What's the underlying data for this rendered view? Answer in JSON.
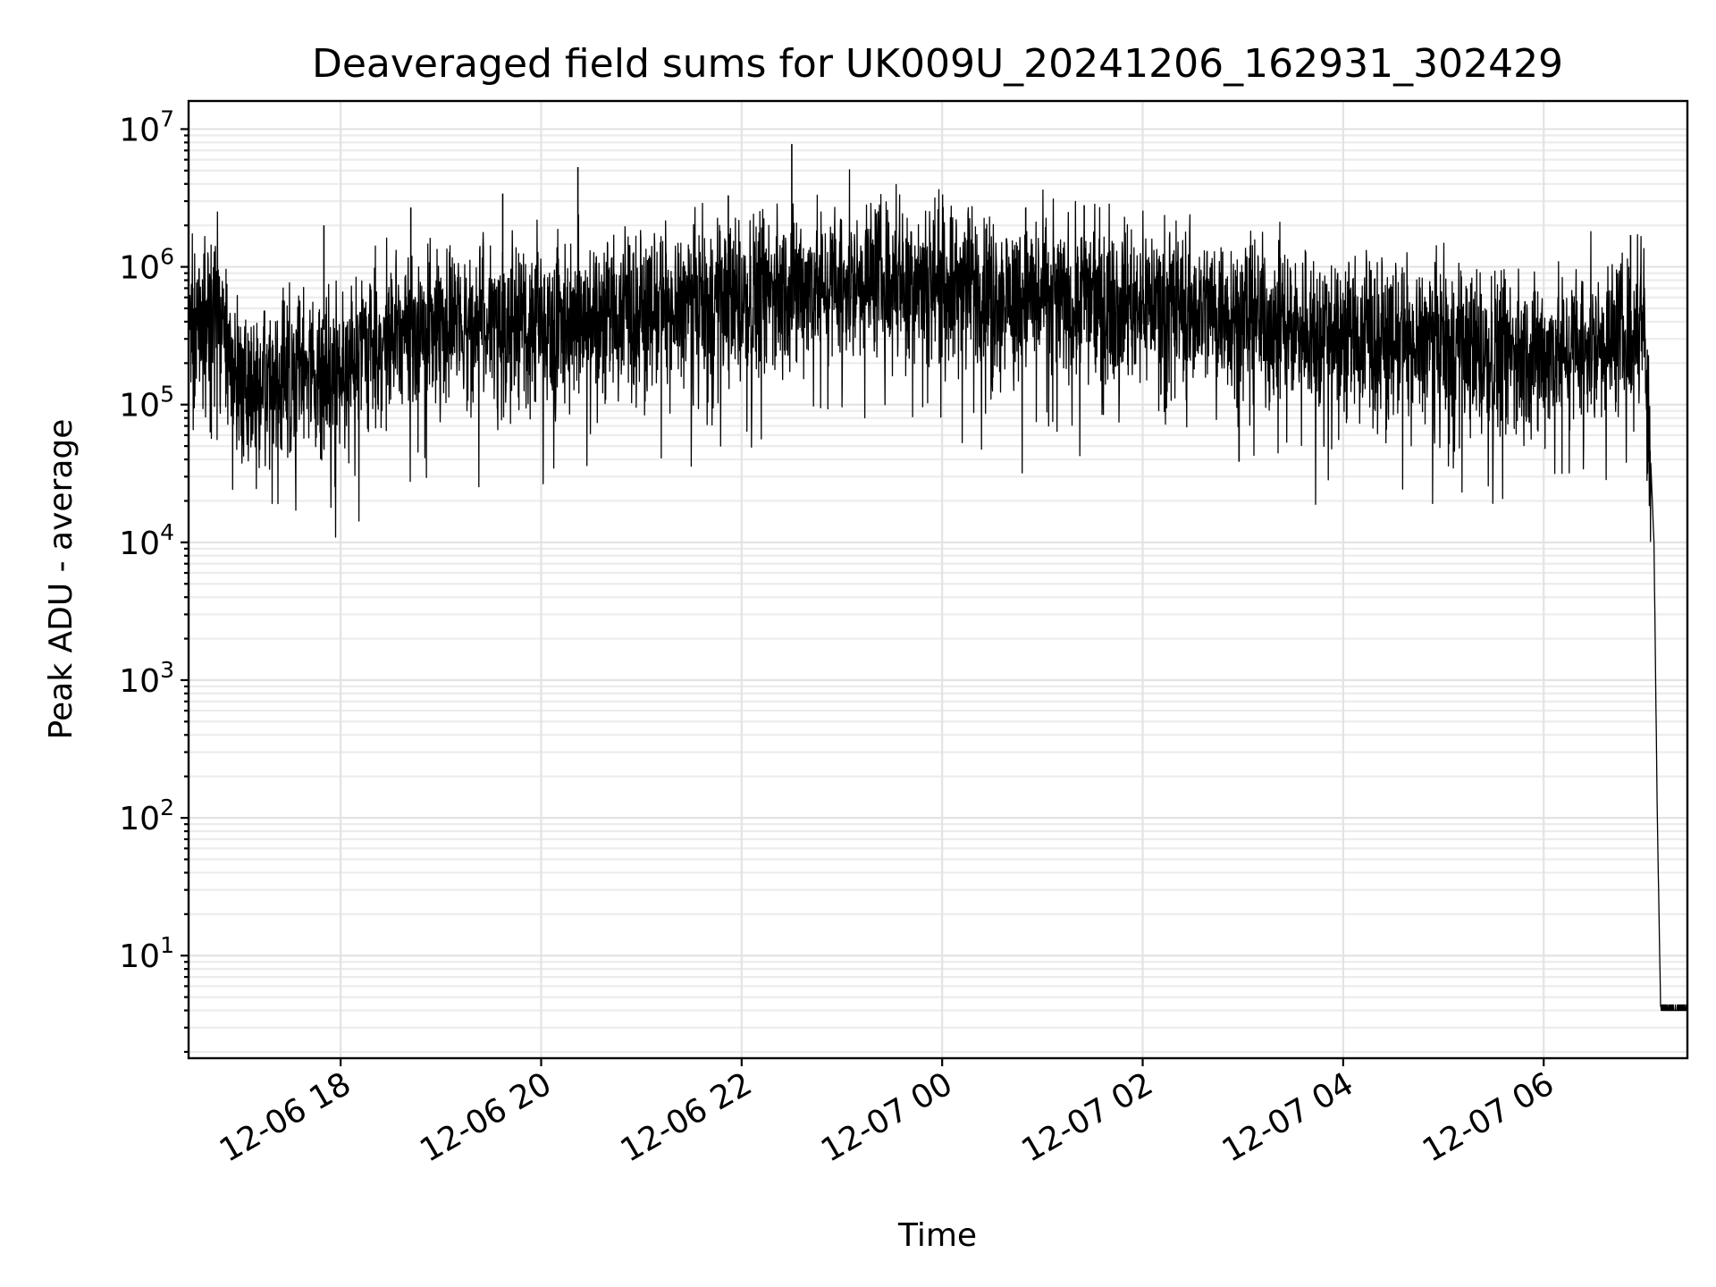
{
  "chart_data": {
    "type": "line",
    "title": "Deaveraged field sums for UK009U_20241206_162931_302429",
    "xlabel": "Time",
    "ylabel": "Peak ADU - average",
    "yscale": "log",
    "ylim": [
      1.8,
      16000000
    ],
    "xlim": [
      "2024-12-06 16:29",
      "2024-12-07 07:26"
    ],
    "grid": "major and minor on both axes",
    "series_color": "#000000",
    "x_ticks": [
      {
        "value": "2024-12-06 18:00",
        "label": "12-06 18"
      },
      {
        "value": "2024-12-06 20:00",
        "label": "12-06 20"
      },
      {
        "value": "2024-12-06 22:00",
        "label": "12-06 22"
      },
      {
        "value": "2024-12-07 00:00",
        "label": "12-07 00"
      },
      {
        "value": "2024-12-07 02:00",
        "label": "12-07 02"
      },
      {
        "value": "2024-12-07 04:00",
        "label": "12-07 04"
      },
      {
        "value": "2024-12-07 06:00",
        "label": "12-07 06"
      }
    ],
    "y_ticks": [
      {
        "value": 10,
        "base": "10",
        "exp": "1"
      },
      {
        "value": 100,
        "base": "10",
        "exp": "2"
      },
      {
        "value": 1000,
        "base": "10",
        "exp": "3"
      },
      {
        "value": 10000,
        "base": "10",
        "exp": "4"
      },
      {
        "value": 100000,
        "base": "10",
        "exp": "5"
      },
      {
        "value": 1000000,
        "base": "10",
        "exp": "6"
      },
      {
        "value": 10000000,
        "base": "10",
        "exp": "7"
      }
    ],
    "series": [
      {
        "x": [
          "2024-12-06 16:29",
          "2024-12-06 16:35",
          "2024-12-06 16:40",
          "2024-12-06 16:45",
          "2024-12-06 16:50",
          "2024-12-06 16:55",
          "2024-12-06 17:00",
          "2024-12-06 17:05",
          "2024-12-06 17:10",
          "2024-12-06 17:20",
          "2024-12-06 17:30",
          "2024-12-06 17:40",
          "2024-12-06 17:50",
          "2024-12-06 18:00",
          "2024-12-06 18:15",
          "2024-12-06 18:30",
          "2024-12-06 18:45",
          "2024-12-06 19:00",
          "2024-12-06 19:20",
          "2024-12-06 19:40",
          "2024-12-06 20:00",
          "2024-12-06 20:20",
          "2024-12-06 20:40",
          "2024-12-06 21:00",
          "2024-12-06 21:20",
          "2024-12-06 21:40",
          "2024-12-06 22:00",
          "2024-12-06 22:20",
          "2024-12-06 22:40",
          "2024-12-06 23:00",
          "2024-12-06 23:20",
          "2024-12-06 23:40",
          "2024-12-07 00:00",
          "2024-12-07 00:20",
          "2024-12-07 00:40",
          "2024-12-07 01:00",
          "2024-12-07 01:20",
          "2024-12-07 01:40",
          "2024-12-07 02:00",
          "2024-12-07 02:20",
          "2024-12-07 02:40",
          "2024-12-07 03:00",
          "2024-12-07 03:20",
          "2024-12-07 03:40",
          "2024-12-07 04:00",
          "2024-12-07 04:20",
          "2024-12-07 04:40",
          "2024-12-07 05:00",
          "2024-12-07 05:20",
          "2024-12-07 05:40",
          "2024-12-07 06:00",
          "2024-12-07 06:20",
          "2024-12-07 06:40",
          "2024-12-07 06:55",
          "2024-12-07 07:00",
          "2024-12-07 07:04",
          "2024-12-07 07:06",
          "2024-12-07 07:08",
          "2024-12-07 07:10",
          "2024-12-07 07:26"
        ],
        "values": [
          400000,
          450000,
          500000,
          600000,
          400000,
          200000,
          150000,
          140000,
          130000,
          150000,
          180000,
          200000,
          160000,
          200000,
          250000,
          300000,
          350000,
          400000,
          380000,
          400000,
          420000,
          450000,
          480000,
          500000,
          520000,
          550000,
          600000,
          700000,
          750000,
          800000,
          850000,
          900000,
          800000,
          700000,
          650000,
          600000,
          620000,
          600000,
          580000,
          550000,
          500000,
          450000,
          400000,
          380000,
          350000,
          320000,
          300000,
          280000,
          250000,
          240000,
          230000,
          280000,
          300000,
          350000,
          500000,
          40000,
          10000,
          100,
          4,
          4
        ]
      }
    ],
    "spikes": [
      {
        "x": "2024-12-06 19:37",
        "y": 3400000
      },
      {
        "x": "2024-12-06 20:22",
        "y": 5300000
      },
      {
        "x": "2024-12-06 22:30",
        "y": 7800000
      },
      {
        "x": "2024-12-06 21:52",
        "y": 3300000
      },
      {
        "x": "2024-12-06 18:42",
        "y": 2700000
      },
      {
        "x": "2024-12-06 17:50",
        "y": 2000000
      },
      {
        "x": "2024-12-07 01:25",
        "y": 2800000
      },
      {
        "x": "2024-12-07 00:50",
        "y": 2700000
      },
      {
        "x": "2024-12-07 06:52",
        "y": 1700000
      }
    ]
  }
}
